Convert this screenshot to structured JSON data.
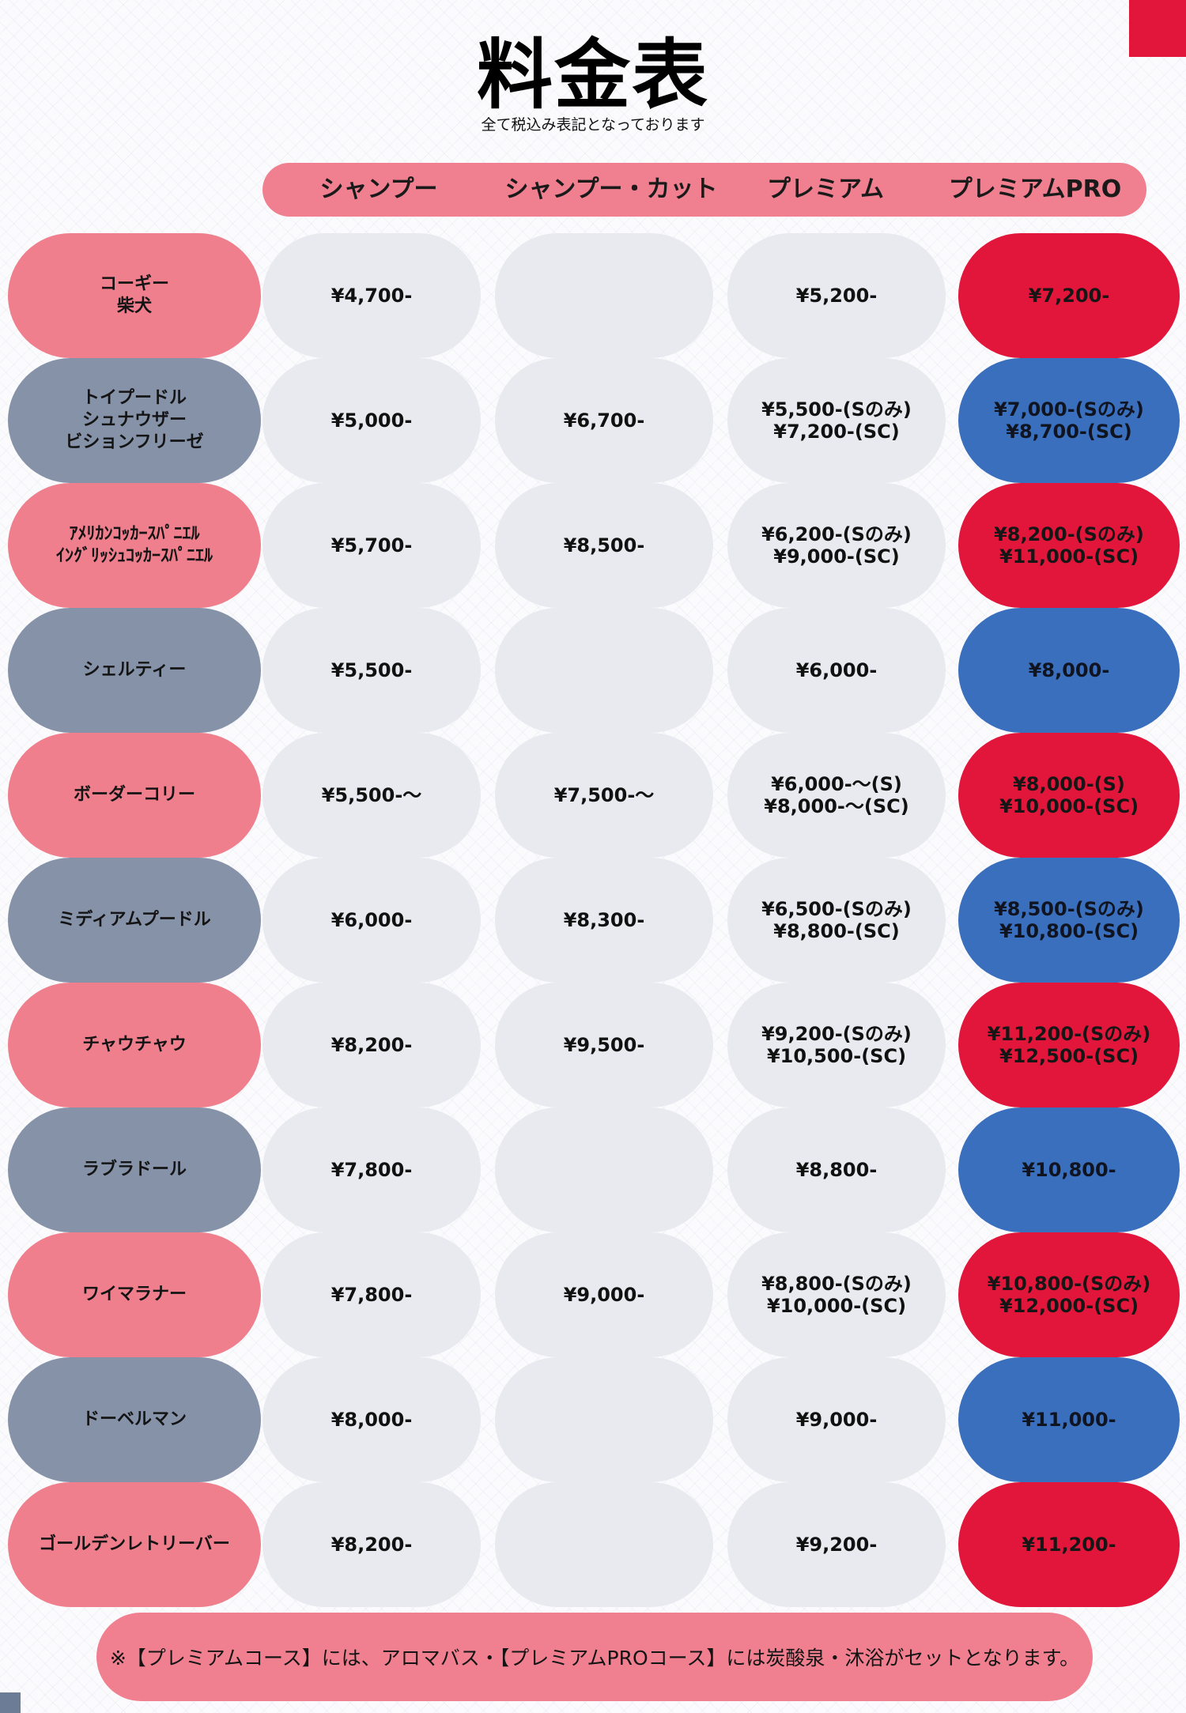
{
  "title": "料金表",
  "subtitle": "全て税込み表記となっております",
  "headers": [
    "シャンプー",
    "シャンプー・カット",
    "プレミアム",
    "プレミアムPRO"
  ],
  "rows": [
    {
      "name": "コーギー\n柴犬",
      "shampoo": "¥4,700-",
      "cut": "",
      "premium": "¥5,200-",
      "pro": "¥7,200-"
    },
    {
      "name": "トイプードル\nシュナウザー\nビションフリーゼ",
      "shampoo": "¥5,000-",
      "cut": "¥6,700-",
      "premium": "¥5,500-(Sのみ)\n¥7,200-(SC)",
      "pro": "¥7,000-(Sのみ)\n¥8,700-(SC)"
    },
    {
      "name": "ｱﾒﾘｶﾝｺｯｶｰｽﾊﾟﾆｴﾙ\nｲﾝｸﾞﾘｯｼｭｺｯｶｰｽﾊﾟﾆｴﾙ",
      "shampoo": "¥5,700-",
      "cut": "¥8,500-",
      "premium": "¥6,200-(Sのみ)\n¥9,000-(SC)",
      "pro": "¥8,200-(Sのみ)\n¥11,000-(SC)"
    },
    {
      "name": "シェルティー",
      "shampoo": "¥5,500-",
      "cut": "",
      "premium": "¥6,000-",
      "pro": "¥8,000-"
    },
    {
      "name": "ボーダーコリー",
      "shampoo": "¥5,500-～",
      "cut": "¥7,500-～",
      "premium": "¥6,000-～(S)\n¥8,000-～(SC)",
      "pro": "¥8,000-(S)\n¥10,000-(SC)"
    },
    {
      "name": "ミディアムプードル",
      "shampoo": "¥6,000-",
      "cut": "¥8,300-",
      "premium": "¥6,500-(Sのみ)\n¥8,800-(SC)",
      "pro": "¥8,500-(Sのみ)\n¥10,800-(SC)"
    },
    {
      "name": "チャウチャウ",
      "shampoo": "¥8,200-",
      "cut": "¥9,500-",
      "premium": "¥9,200-(Sのみ)\n¥10,500-(SC)",
      "pro": "¥11,200-(Sのみ)\n¥12,500-(SC)"
    },
    {
      "name": "ラブラドール",
      "shampoo": "¥7,800-",
      "cut": "",
      "premium": "¥8,800-",
      "pro": "¥10,800-"
    },
    {
      "name": "ワイマラナー",
      "shampoo": "¥7,800-",
      "cut": "¥9,000-",
      "premium": "¥8,800-(Sのみ)\n¥10,000-(SC)",
      "pro": "¥10,800-(Sのみ)\n¥12,000-(SC)"
    },
    {
      "name": "ドーベルマン",
      "shampoo": "¥8,000-",
      "cut": "",
      "premium": "¥9,000-",
      "pro": "¥11,000-"
    },
    {
      "name": "ゴールデンレトリーバー",
      "shampoo": "¥8,200-",
      "cut": "",
      "premium": "¥9,200-",
      "pro": "¥11,200-"
    }
  ],
  "footer_note": "※【プレミアムコース】には、アロマバス・【プレミアムPROコース】には炭酸泉・沐浴がセットとなります。",
  "colors": {
    "pink": "#f07f8e",
    "gray_blue": "#8592a8",
    "cell_gray": "#e8eaf0",
    "pro_red": "#e2163a",
    "pro_blue": "#3a6fbd"
  }
}
